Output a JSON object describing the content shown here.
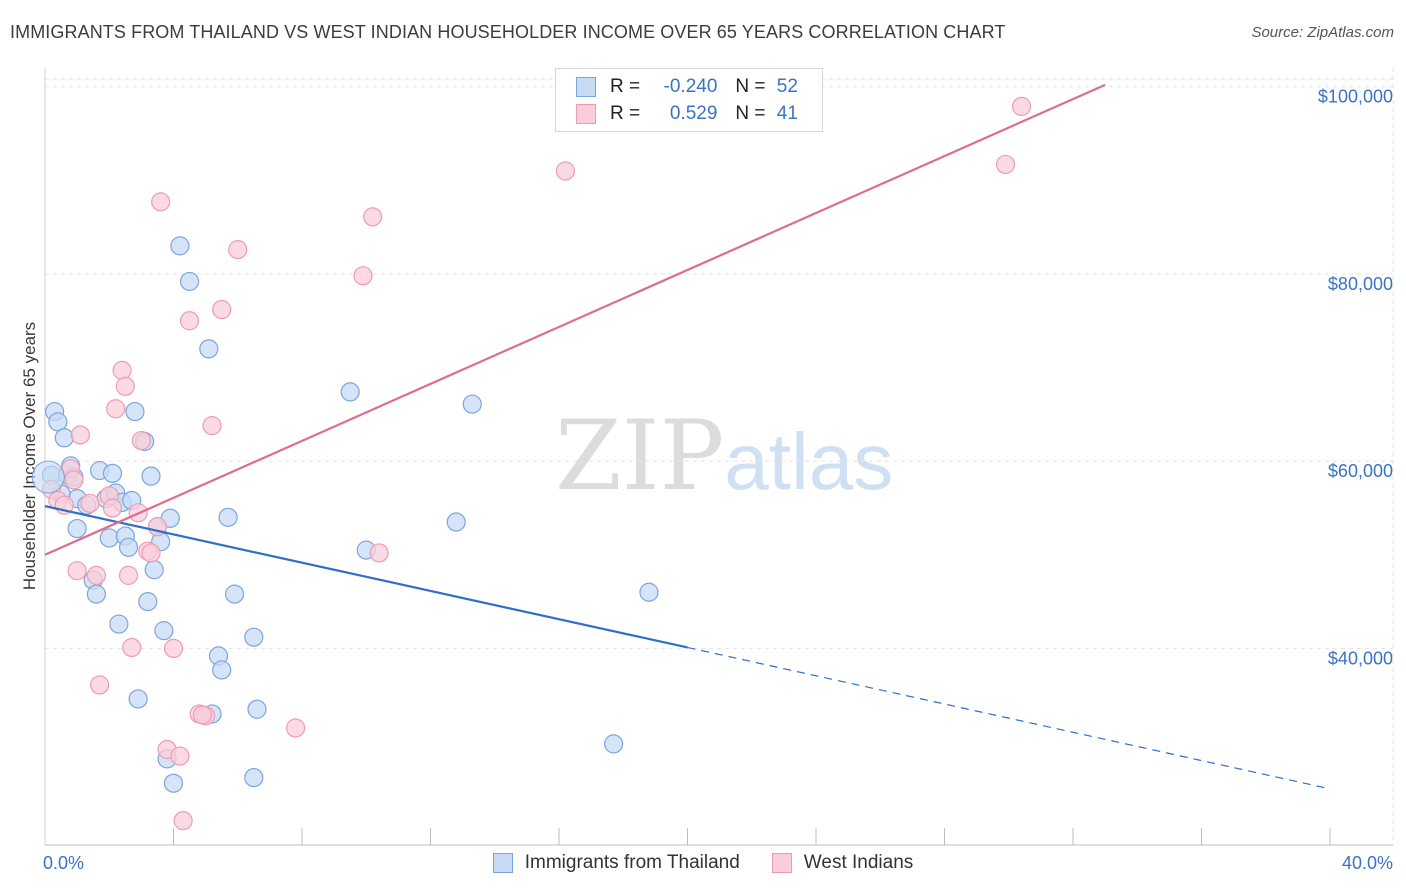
{
  "title": "IMMIGRANTS FROM THAILAND VS WEST INDIAN HOUSEHOLDER INCOME OVER 65 YEARS CORRELATION CHART",
  "source": "Source: ZipAtlas.com",
  "watermark": {
    "zip": "ZIP",
    "atlas": "atlas"
  },
  "legend": {
    "rows": [
      {
        "r_label": "R =",
        "r_value": "-0.240",
        "n_label": "N =",
        "n_value": "52"
      },
      {
        "r_label": "R =",
        "r_value": "0.529",
        "n_label": "N =",
        "n_value": "41"
      }
    ]
  },
  "colors": {
    "blue_fill": "#c7dbf5",
    "blue_stroke": "#7aa6dc",
    "blue_line": "#2f6fc9",
    "pink_fill": "#f9cdd9",
    "pink_stroke": "#ee9bb3",
    "pink_line": "#e06b92",
    "axis_text": "#3a73c5",
    "grid": "#e3e3e3"
  },
  "chart_data": {
    "type": "scatter",
    "title": "IMMIGRANTS FROM THAILAND VS WEST INDIAN HOUSEHOLDER INCOME OVER 65 YEARS CORRELATION CHART",
    "xlabel": "",
    "ylabel": "Householder Income Over 65 years",
    "xlim": [
      0,
      40
    ],
    "ylim": [
      19000,
      102000
    ],
    "x_tick_labels": [
      "0.0%",
      "40.0%"
    ],
    "y_ticks": [
      40000,
      60000,
      80000,
      100000
    ],
    "y_tick_labels": [
      "$40,000",
      "$60,000",
      "$80,000",
      "$100,000"
    ],
    "series": [
      {
        "name": "Immigrants from Thailand",
        "color": "blue",
        "points": [
          [
            0.2,
            58.5
          ],
          [
            0.3,
            65.3
          ],
          [
            0.4,
            64.2
          ],
          [
            0.6,
            62.5
          ],
          [
            0.7,
            58.5
          ],
          [
            0.8,
            59.5
          ],
          [
            0.9,
            58.3
          ],
          [
            1.0,
            56.0
          ],
          [
            1.0,
            52.8
          ],
          [
            1.3,
            55.3
          ],
          [
            1.5,
            47.3
          ],
          [
            1.6,
            45.8
          ],
          [
            1.7,
            59.0
          ],
          [
            1.9,
            56.0
          ],
          [
            2.0,
            51.8
          ],
          [
            2.1,
            58.7
          ],
          [
            2.2,
            56.6
          ],
          [
            2.3,
            42.6
          ],
          [
            2.4,
            55.6
          ],
          [
            2.5,
            52.0
          ],
          [
            2.6,
            50.8
          ],
          [
            2.7,
            55.8
          ],
          [
            2.8,
            65.3
          ],
          [
            2.9,
            34.6
          ],
          [
            3.1,
            62.1
          ],
          [
            3.2,
            45.0
          ],
          [
            3.3,
            58.4
          ],
          [
            3.4,
            48.4
          ],
          [
            3.5,
            53.0
          ],
          [
            3.6,
            51.4
          ],
          [
            3.7,
            41.9
          ],
          [
            3.8,
            28.2
          ],
          [
            3.9,
            53.9
          ],
          [
            4.0,
            25.6
          ],
          [
            4.2,
            83.0
          ],
          [
            4.5,
            79.2
          ],
          [
            5.1,
            72.0
          ],
          [
            5.2,
            33.0
          ],
          [
            5.4,
            39.2
          ],
          [
            5.5,
            37.7
          ],
          [
            5.7,
            54.0
          ],
          [
            5.9,
            45.8
          ],
          [
            6.5,
            41.2
          ],
          [
            6.6,
            33.5
          ],
          [
            6.5,
            26.2
          ],
          [
            9.5,
            67.4
          ],
          [
            10.0,
            50.5
          ],
          [
            12.8,
            53.5
          ],
          [
            13.3,
            66.1
          ],
          [
            17.7,
            29.8
          ],
          [
            18.8,
            46.0
          ],
          [
            0.5,
            56.5
          ]
        ]
      },
      {
        "name": "West Indians",
        "color": "pink",
        "points": [
          [
            0.2,
            57.0
          ],
          [
            0.4,
            55.8
          ],
          [
            0.6,
            55.3
          ],
          [
            0.8,
            59.2
          ],
          [
            0.9,
            58.0
          ],
          [
            1.0,
            48.3
          ],
          [
            1.1,
            62.8
          ],
          [
            1.4,
            55.5
          ],
          [
            1.6,
            47.8
          ],
          [
            1.7,
            36.1
          ],
          [
            2.0,
            56.3
          ],
          [
            2.1,
            55.0
          ],
          [
            2.2,
            65.6
          ],
          [
            2.4,
            69.7
          ],
          [
            2.5,
            68.0
          ],
          [
            2.6,
            47.8
          ],
          [
            2.7,
            40.1
          ],
          [
            2.9,
            54.5
          ],
          [
            3.0,
            62.2
          ],
          [
            3.2,
            50.4
          ],
          [
            3.3,
            50.2
          ],
          [
            3.5,
            53.0
          ],
          [
            3.6,
            87.7
          ],
          [
            3.8,
            29.2
          ],
          [
            4.0,
            40.0
          ],
          [
            4.2,
            28.5
          ],
          [
            4.3,
            21.6
          ],
          [
            4.5,
            75.0
          ],
          [
            4.8,
            33.0
          ],
          [
            5.0,
            32.8
          ],
          [
            5.2,
            63.8
          ],
          [
            5.5,
            76.2
          ],
          [
            6.0,
            82.6
          ],
          [
            7.8,
            31.5
          ],
          [
            9.9,
            79.8
          ],
          [
            10.2,
            86.1
          ],
          [
            10.4,
            50.2
          ],
          [
            16.2,
            91.0
          ],
          [
            29.9,
            91.7
          ],
          [
            30.4,
            97.9
          ],
          [
            4.9,
            32.9
          ]
        ]
      }
    ],
    "trend_lines": [
      {
        "series": "Immigrants from Thailand",
        "solid": [
          [
            0,
            55.2
          ],
          [
            20,
            40.1
          ]
        ],
        "dashed": [
          [
            20,
            40.1
          ],
          [
            40,
            25.0
          ]
        ]
      },
      {
        "series": "West Indians",
        "solid": [
          [
            0,
            50.0
          ],
          [
            33,
            100.2
          ]
        ]
      }
    ],
    "legend": [
      {
        "name": "Immigrants from Thailand",
        "R": -0.24,
        "N": 52
      },
      {
        "name": "West Indians",
        "R": 0.529,
        "N": 41
      }
    ]
  }
}
